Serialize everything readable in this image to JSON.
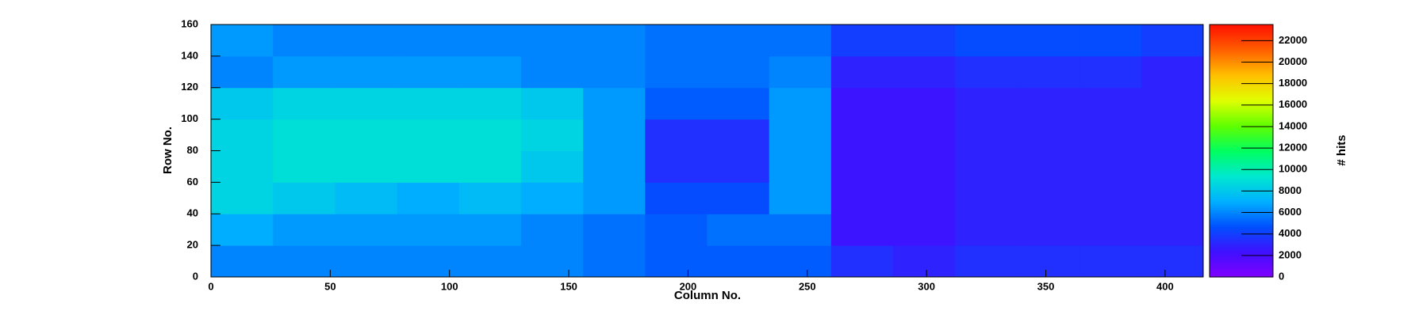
{
  "chart_data": {
    "type": "heatmap",
    "xlabel": "Column No.",
    "ylabel": "Row No.",
    "zlabel": "# hits",
    "xbins": [
      0,
      26,
      52,
      78,
      104,
      130,
      156,
      182,
      208,
      234,
      260,
      286,
      312,
      338,
      364,
      390,
      416
    ],
    "ybins": [
      0,
      20,
      40,
      60,
      80,
      100,
      120,
      140,
      160
    ],
    "z": [
      [
        6000,
        6000,
        6000,
        6000,
        6000,
        6000,
        5500,
        5000,
        5000,
        5000,
        3500,
        3000,
        3500,
        3500,
        3500,
        3500
      ],
      [
        7000,
        6500,
        6500,
        6500,
        6500,
        6000,
        5500,
        5000,
        5500,
        5500,
        2500,
        2500,
        3000,
        3000,
        3000,
        3000
      ],
      [
        8500,
        8000,
        7500,
        7000,
        7500,
        7000,
        6500,
        4500,
        4500,
        6500,
        2500,
        2500,
        3000,
        3000,
        3000,
        3000
      ],
      [
        8500,
        9000,
        9000,
        9000,
        9000,
        8000,
        6500,
        3500,
        3500,
        6500,
        2500,
        2500,
        3000,
        3000,
        3000,
        3000
      ],
      [
        8500,
        9000,
        9000,
        9000,
        9000,
        8500,
        6500,
        3500,
        3500,
        6500,
        2500,
        2500,
        3000,
        3000,
        3000,
        3000
      ],
      [
        8000,
        8500,
        8500,
        8500,
        8500,
        8000,
        6500,
        5000,
        5000,
        6500,
        2500,
        2500,
        3000,
        3000,
        3000,
        3000
      ],
      [
        6000,
        6500,
        6500,
        6500,
        6500,
        6000,
        6000,
        5500,
        5500,
        6000,
        3000,
        3000,
        3500,
        3500,
        3500,
        3000
      ],
      [
        6500,
        6000,
        6000,
        6000,
        6000,
        6000,
        6000,
        5500,
        5500,
        5500,
        4000,
        4000,
        4500,
        4500,
        4500,
        4000
      ]
    ],
    "xlim": [
      0,
      416
    ],
    "xticks": [
      0,
      50,
      100,
      150,
      200,
      250,
      300,
      350,
      400
    ],
    "ylim": [
      0,
      160
    ],
    "yticks": [
      0,
      20,
      40,
      60,
      80,
      100,
      120,
      140,
      160
    ],
    "zlim": [
      0,
      23500
    ],
    "zticks": [
      0,
      2000,
      4000,
      6000,
      8000,
      10000,
      12000,
      14000,
      16000,
      18000,
      20000,
      22000
    ],
    "colorscale": [
      "#8000ff",
      "#4010ff",
      "#0050ff",
      "#00b0ff",
      "#00e8d0",
      "#00ff60",
      "#60ff00",
      "#e0ff00",
      "#ffc000",
      "#ff6000",
      "#ff1000"
    ]
  }
}
